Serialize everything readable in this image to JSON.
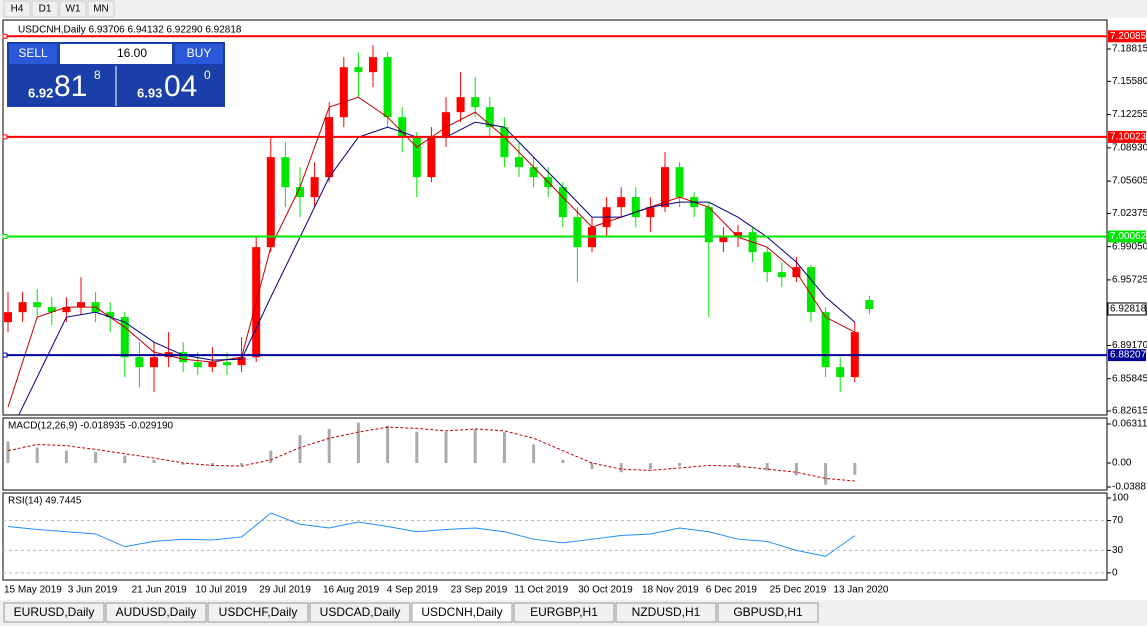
{
  "toolbar": [
    "H4",
    "D1",
    "W1",
    "MN"
  ],
  "chart_data": {
    "type": "candlestick",
    "title": "USDCNH,Daily  6.93706 6.94132 6.92290 6.92818",
    "colors": {
      "up": "#ff0000",
      "down": "#00e600",
      "ma_fast": "#c00000",
      "ma_slow": "#000080"
    },
    "ylim": [
      6.82215,
      7.21715
    ],
    "yticks": [
      7.18815,
      {
        "value": 7.1558,
        "label": "7.15580"
      },
      7.12255,
      {
        "value": 7.0893,
        "label": "7.08930"
      },
      7.05605,
      7.02375,
      {
        "value": 6.9905,
        "label": "6.99050"
      },
      6.95725,
      6.92495,
      {
        "value": 6.8917,
        "label": "6.89170"
      },
      6.85845,
      6.82615
    ],
    "levels": [
      {
        "value": 7.20085,
        "color": "#ff0000"
      },
      {
        "value": 7.10023,
        "color": "#ff0000"
      },
      {
        "value": 7.00062,
        "color": "#00e600"
      },
      {
        "value": 6.88207,
        "color": "#000099"
      }
    ],
    "last_price": 6.92818,
    "x_labels": [
      "15 May 2019",
      "3 Jun 2019",
      "21 Jun 2019",
      "10 Jul 2019",
      "29 Jul 2019",
      "16 Aug 2019",
      "4 Sep 2019",
      "23 Sep 2019",
      "11 Oct 2019",
      "30 Oct 2019",
      "18 Nov 2019",
      "6 Dec 2019",
      "25 Dec 2019",
      "13 Jan 2020"
    ],
    "candles": [
      [
        6.915,
        6.945,
        6.905,
        6.925
      ],
      [
        6.925,
        6.945,
        6.915,
        6.935
      ],
      [
        6.935,
        6.948,
        6.918,
        6.93
      ],
      [
        6.93,
        6.94,
        6.912,
        6.925
      ],
      [
        6.925,
        6.94,
        6.915,
        6.93
      ],
      [
        6.93,
        6.96,
        6.922,
        6.935
      ],
      [
        6.935,
        6.945,
        6.915,
        6.925
      ],
      [
        6.925,
        6.935,
        6.905,
        6.92
      ],
      [
        6.92,
        6.925,
        6.86,
        6.88
      ],
      [
        6.88,
        6.895,
        6.85,
        6.87
      ],
      [
        6.87,
        6.895,
        6.845,
        6.88
      ],
      [
        6.88,
        6.905,
        6.87,
        6.885
      ],
      [
        6.885,
        6.895,
        6.865,
        6.875
      ],
      [
        6.875,
        6.885,
        6.862,
        6.87
      ],
      [
        6.87,
        6.89,
        6.865,
        6.875
      ],
      [
        6.875,
        6.885,
        6.862,
        6.872
      ],
      [
        6.872,
        6.9,
        6.865,
        6.88
      ],
      [
        6.88,
        7.0,
        6.875,
        6.99
      ],
      [
        6.99,
        7.1,
        6.985,
        7.08
      ],
      [
        7.08,
        7.095,
        7.03,
        7.05
      ],
      [
        7.05,
        7.07,
        7.02,
        7.04
      ],
      [
        7.04,
        7.075,
        7.03,
        7.06
      ],
      [
        7.06,
        7.135,
        7.055,
        7.12
      ],
      [
        7.12,
        7.18,
        7.11,
        7.17
      ],
      [
        7.17,
        7.185,
        7.14,
        7.165
      ],
      [
        7.165,
        7.192,
        7.15,
        7.18
      ],
      [
        7.18,
        7.185,
        7.11,
        7.12
      ],
      [
        7.12,
        7.13,
        7.085,
        7.1
      ],
      [
        7.1,
        7.105,
        7.04,
        7.06
      ],
      [
        7.06,
        7.11,
        7.055,
        7.1
      ],
      [
        7.1,
        7.14,
        7.09,
        7.125
      ],
      [
        7.125,
        7.165,
        7.115,
        7.14
      ],
      [
        7.14,
        7.16,
        7.12,
        7.13
      ],
      [
        7.13,
        7.14,
        7.1,
        7.11
      ],
      [
        7.11,
        7.12,
        7.07,
        7.08
      ],
      [
        7.08,
        7.095,
        7.06,
        7.07
      ],
      [
        7.07,
        7.08,
        7.05,
        7.06
      ],
      [
        7.06,
        7.07,
        7.04,
        7.05
      ],
      [
        7.05,
        7.055,
        7.01,
        7.02
      ],
      [
        7.02,
        7.03,
        6.955,
        6.99
      ],
      [
        6.99,
        7.02,
        6.985,
        7.01
      ],
      [
        7.01,
        7.04,
        7.0,
        7.03
      ],
      [
        7.03,
        7.05,
        7.02,
        7.04
      ],
      [
        7.04,
        7.05,
        7.01,
        7.02
      ],
      [
        7.02,
        7.04,
        7.005,
        7.03
      ],
      [
        7.03,
        7.085,
        7.025,
        7.07
      ],
      [
        7.07,
        7.075,
        7.03,
        7.04
      ],
      [
        7.04,
        7.045,
        7.02,
        7.03
      ],
      [
        7.03,
        7.035,
        6.92,
        6.995
      ],
      [
        6.995,
        7.01,
        6.985,
        7.0
      ],
      [
        7.0,
        7.012,
        6.99,
        7.005
      ],
      [
        7.005,
        7.01,
        6.975,
        6.985
      ],
      [
        6.985,
        6.99,
        6.955,
        6.965
      ],
      [
        6.965,
        6.975,
        6.95,
        6.96
      ],
      [
        6.96,
        6.98,
        6.955,
        6.97
      ],
      [
        6.97,
        6.972,
        6.915,
        6.925
      ],
      [
        6.925,
        6.93,
        6.86,
        6.87
      ],
      [
        6.87,
        6.88,
        6.845,
        6.86
      ],
      [
        6.86,
        6.915,
        6.855,
        6.905
      ],
      [
        6.93706,
        6.94132,
        6.9229,
        6.92818
      ]
    ],
    "ma_fast": [
      6.83,
      6.92,
      6.93,
      6.93,
      6.91,
      6.885,
      6.878,
      6.875,
      6.88,
      6.99,
      7.05,
      7.13,
      7.14,
      7.12,
      7.09,
      7.11,
      7.125,
      7.1,
      7.07,
      7.04,
      7.01,
      7.02,
      7.03,
      7.04,
      7.03,
      7.0,
      6.99,
      6.965,
      6.92,
      6.905
    ],
    "ma_slow": [
      6.8,
      6.86,
      6.92,
      6.925,
      6.915,
      6.895,
      6.882,
      6.877,
      6.878,
      6.94,
      7.0,
      7.06,
      7.1,
      7.11,
      7.1,
      7.1,
      7.115,
      7.11,
      7.08,
      7.05,
      7.02,
      7.02,
      7.03,
      7.035,
      7.035,
      7.02,
      7.0,
      6.975,
      6.94,
      6.915
    ],
    "macd": {
      "title": "MACD(12,26,9) -0.018935 -0.029190",
      "ylim": [
        -0.0437,
        0.0728
      ],
      "yticks": [
        0.063113,
        {
          "value": 0,
          "label": "0.00"
        },
        -0.03887
      ],
      "histogram": [
        0.035,
        0.025,
        0.02,
        0.018,
        0.012,
        0.005,
        -0.003,
        -0.005,
        -0.004,
        0.02,
        0.045,
        0.055,
        0.065,
        0.06,
        0.05,
        0.05,
        0.055,
        0.05,
        0.03,
        0.005,
        -0.01,
        -0.015,
        -0.01,
        -0.005,
        0.0,
        -0.008,
        -0.012,
        -0.02,
        -0.035,
        -0.018935
      ],
      "signal": [
        0.02,
        0.03,
        0.028,
        0.022,
        0.015,
        0.008,
        0.0,
        -0.004,
        -0.005,
        0.005,
        0.025,
        0.04,
        0.05,
        0.058,
        0.056,
        0.052,
        0.055,
        0.052,
        0.04,
        0.02,
        0.0,
        -0.01,
        -0.012,
        -0.008,
        -0.004,
        -0.005,
        -0.01,
        -0.015,
        -0.025,
        -0.02919
      ]
    },
    "rsi": {
      "title": "RSI(14) 49.7445",
      "ylim": [
        -9.6,
        106.8
      ],
      "yticks": [
        100,
        70,
        30,
        0
      ],
      "values": [
        62,
        58,
        55,
        52,
        35,
        42,
        45,
        44,
        48,
        80,
        65,
        60,
        68,
        62,
        55,
        58,
        60,
        55,
        45,
        40,
        45,
        50,
        52,
        60,
        55,
        45,
        42,
        30,
        22,
        49.7445
      ]
    }
  },
  "trade_panel": {
    "sell": "SELL",
    "buy": "BUY",
    "lots": "16.00",
    "bid_big": "6.92",
    "bid_pips": "81",
    "bid_frac": "8",
    "ask_big": "6.93",
    "ask_pips": "04",
    "ask_frac": "0"
  },
  "tabs": [
    "EURUSD,Daily",
    "AUDUSD,Daily",
    "USDCHF,Daily",
    "USDCAD,Daily",
    "USDCNH,Daily",
    "EURGBP,H1",
    "NZDUSD,H1",
    "GBPUSD,H1"
  ],
  "active_tab": 4
}
